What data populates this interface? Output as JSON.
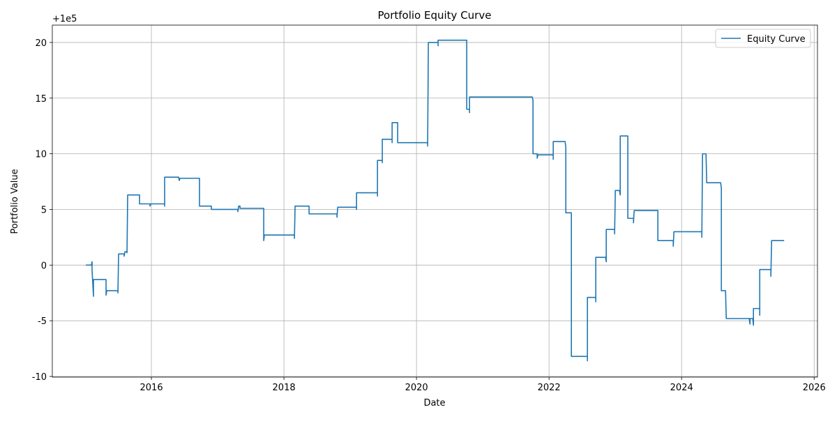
{
  "chart_data": {
    "type": "line",
    "title": "Portfolio Equity Curve",
    "xlabel": "Date",
    "ylabel": "Portfolio Value",
    "y_offset_label": "+1e5",
    "x": [
      2015.011,
      2015.095,
      2015.105,
      2015.105,
      2015.126,
      2015.126,
      2015.316,
      2015.316,
      2015.326,
      2015.495,
      2015.495,
      2015.505,
      2015.589,
      2015.589,
      2015.6,
      2015.632,
      2015.632,
      2015.642,
      2015.821,
      2015.821,
      2015.979,
      2015.979,
      2015.989,
      2016.2,
      2016.2,
      2016.2,
      2016.411,
      2016.421,
      2016.432,
      2016.726,
      2016.726,
      2016.905,
      2016.905,
      2017.305,
      2017.305,
      2017.316,
      2017.337,
      2017.337,
      2017.695,
      2017.695,
      2017.705,
      2018.158,
      2018.158,
      2018.168,
      2018.379,
      2018.379,
      2018.8,
      2018.8,
      2018.811,
      2019.095,
      2019.095,
      2019.095,
      2019.411,
      2019.411,
      2019.411,
      2019.484,
      2019.484,
      2019.484,
      2019.632,
      2019.632,
      2019.632,
      2019.716,
      2019.716,
      2020.168,
      2020.168,
      2020.179,
      2020.326,
      2020.326,
      2020.326,
      2020.758,
      2020.758,
      2020.8,
      2020.8,
      2020.8,
      2021.747,
      2021.758,
      2021.758,
      2021.821,
      2021.821,
      2021.832,
      2022.063,
      2022.063,
      2022.063,
      2022.242,
      2022.253,
      2022.253,
      2022.337,
      2022.337,
      2022.579,
      2022.579,
      2022.579,
      2022.705,
      2022.705,
      2022.705,
      2022.853,
      2022.863,
      2022.863,
      2022.989,
      2022.989,
      2023.0,
      2023.063,
      2023.074,
      2023.074,
      2023.189,
      2023.189,
      2023.189,
      2023.274,
      2023.274,
      2023.284,
      2023.642,
      2023.642,
      2023.874,
      2023.874,
      2023.884,
      2024.305,
      2024.305,
      2024.316,
      2024.368,
      2024.379,
      2024.589,
      2024.6,
      2024.6,
      2024.663,
      2024.674,
      2025.021,
      2025.032,
      2025.032,
      2025.074,
      2025.084,
      2025.084,
      2025.179,
      2025.179,
      2025.179,
      2025.347,
      2025.347,
      2025.358,
      2025.547
    ],
    "series": [
      {
        "name": "Equity Curve",
        "color": "#1f77b4",
        "values": [
          0,
          0,
          0.3,
          -0.5,
          -2.8,
          -1.3,
          -1.3,
          -2.7,
          -2.3,
          -2.3,
          -2.5,
          1.0,
          1.0,
          0.8,
          1.2,
          1.2,
          1.1,
          6.3,
          6.3,
          5.5,
          5.5,
          5.3,
          5.5,
          5.5,
          5.3,
          7.9,
          7.9,
          7.6,
          7.8,
          7.8,
          5.3,
          5.3,
          5.0,
          5.0,
          4.8,
          5.3,
          5.3,
          5.1,
          5.1,
          2.2,
          2.7,
          2.7,
          2.4,
          5.3,
          5.3,
          4.6,
          4.6,
          4.3,
          5.2,
          5.2,
          5.0,
          6.5,
          6.5,
          6.2,
          9.4,
          9.4,
          9.2,
          11.3,
          11.3,
          11.0,
          12.8,
          12.8,
          11.0,
          11.0,
          10.7,
          20.0,
          20.0,
          19.7,
          20.2,
          20.2,
          14.0,
          14.0,
          13.7,
          15.1,
          15.1,
          14.8,
          10.0,
          10.0,
          9.6,
          9.9,
          9.9,
          9.5,
          11.1,
          11.1,
          10.6,
          4.7,
          4.7,
          -8.2,
          -8.2,
          -8.6,
          -2.9,
          -2.9,
          -3.3,
          0.7,
          0.7,
          0.3,
          3.2,
          3.2,
          2.8,
          6.7,
          6.7,
          6.3,
          11.6,
          11.6,
          11.3,
          4.2,
          4.2,
          3.8,
          4.9,
          4.9,
          2.2,
          2.2,
          1.7,
          3.0,
          3.0,
          2.5,
          10.0,
          10.0,
          7.4,
          7.4,
          6.9,
          -2.3,
          -2.3,
          -4.8,
          -4.8,
          -5.3,
          -4.8,
          -4.8,
          -5.4,
          -3.9,
          -3.9,
          -4.5,
          -0.4,
          -0.4,
          -1.0,
          2.2,
          2.2
        ]
      }
    ],
    "xlim": [
      2014.505,
      2026.05
    ],
    "xticks": [
      2016,
      2018,
      2020,
      2022,
      2024,
      2026
    ],
    "ylim": [
      -10.06,
      21.56
    ],
    "yticks": [
      -10,
      -5,
      0,
      5,
      10,
      15,
      20
    ],
    "grid": true,
    "legend": "upper right"
  }
}
